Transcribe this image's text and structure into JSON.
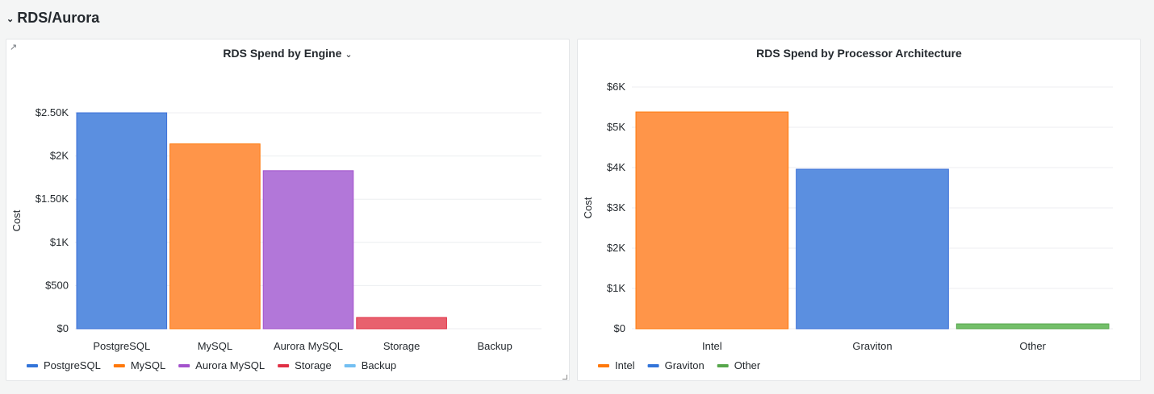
{
  "row": {
    "title": "RDS/Aurora"
  },
  "chart_data": [
    {
      "type": "bar",
      "title": "RDS Spend by Engine",
      "xlabel": "",
      "ylabel": "Cost",
      "ylim": [
        0,
        2500
      ],
      "yticks": [
        0,
        500,
        1000,
        1500,
        2000,
        2500
      ],
      "ytick_labels": [
        "$0",
        "$500",
        "$1K",
        "$1.50K",
        "$2K",
        "$2.50K"
      ],
      "categories": [
        "PostgreSQL",
        "MySQL",
        "Aurora MySQL",
        "Storage",
        "Backup"
      ],
      "values": [
        2500,
        2140,
        1830,
        130,
        0
      ],
      "colors": [
        "#5b8fe0",
        "#ff9549",
        "#b277d9",
        "#e8616e",
        "#73bff2"
      ],
      "borders": [
        "#3d71d9",
        "#ff780a",
        "#a352cc",
        "#e02f44",
        "#5794f2"
      ],
      "legend": [
        "PostgreSQL",
        "MySQL",
        "Aurora MySQL",
        "Storage",
        "Backup"
      ],
      "legend_colors": [
        "#3274d9",
        "#ff780a",
        "#a352cc",
        "#e02f44",
        "#73bff2"
      ],
      "legend_position": "bottom-left",
      "grid": true
    },
    {
      "type": "bar",
      "title": "RDS Spend by Processor Architecture",
      "xlabel": "",
      "ylabel": "Cost",
      "ylim": [
        0,
        6000
      ],
      "yticks": [
        0,
        1000,
        2000,
        3000,
        4000,
        5000,
        6000
      ],
      "ytick_labels": [
        "$0",
        "$1K",
        "$2K",
        "$3K",
        "$4K",
        "$5K",
        "$6K"
      ],
      "categories": [
        "Intel",
        "Graviton",
        "Other"
      ],
      "values": [
        5380,
        3960,
        120
      ],
      "colors": [
        "#ff9549",
        "#5b8fe0",
        "#73bf69"
      ],
      "borders": [
        "#ff780a",
        "#3d71d9",
        "#56a64b"
      ],
      "legend": [
        "Intel",
        "Graviton",
        "Other"
      ],
      "legend_colors": [
        "#ff780a",
        "#3274d9",
        "#56a64b"
      ],
      "legend_position": "bottom-left",
      "grid": true
    }
  ]
}
